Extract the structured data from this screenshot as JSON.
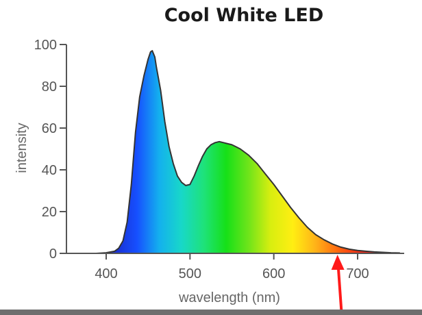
{
  "chart_data": {
    "type": "area",
    "title": "Cool White LED",
    "xlabel": "wavelength (nm)",
    "ylabel": "intensity",
    "xlim": [
      350,
      760
    ],
    "ylim": [
      0,
      100
    ],
    "xticks": [
      400,
      500,
      600,
      700
    ],
    "xtick_labels": [
      "400",
      "500",
      "600",
      "700"
    ],
    "yticks": [
      0,
      20,
      40,
      60,
      80,
      100
    ],
    "ytick_labels": [
      "0",
      "20",
      "40",
      "60",
      "80",
      "100"
    ],
    "grid": false,
    "series": [
      {
        "x": [
          388,
          400,
          410,
          415,
          420,
          425,
          430,
          435,
          440,
          445,
          450,
          453,
          455,
          458,
          460,
          465,
          470,
          475,
          480,
          485,
          490,
          495,
          500,
          505,
          510,
          515,
          520,
          525,
          530,
          535,
          540,
          545,
          550,
          555,
          560,
          570,
          580,
          590,
          600,
          610,
          620,
          630,
          640,
          650,
          660,
          670,
          680,
          690,
          700,
          710,
          720,
          730,
          740,
          750
        ],
        "y": [
          0,
          0.3,
          1,
          2.5,
          6,
          15,
          33,
          58,
          75,
          85,
          93,
          96.5,
          97,
          94,
          89,
          78,
          63,
          51,
          43,
          37,
          34,
          32.5,
          33,
          37,
          42,
          46.5,
          50,
          52,
          53,
          53.5,
          53,
          52.5,
          52,
          51,
          50,
          47,
          43,
          38,
          33,
          27.5,
          22,
          17,
          12.5,
          9,
          6.5,
          4.5,
          3,
          2,
          1.4,
          1,
          0.7,
          0.5,
          0.3,
          0.2
        ]
      }
    ],
    "annotations": [
      {
        "type": "arrow",
        "x": 676,
        "color": "#ff1a1a"
      }
    ],
    "colors": {
      "spectrum": [
        "#2a1a8f",
        "#1a2ed0",
        "#1650ff",
        "#14b0ee",
        "#18d8c8",
        "#1ee27a",
        "#16e018",
        "#6ee41a",
        "#d8ee10",
        "#ffee12",
        "#ffb418",
        "#ff6a10",
        "#f52a14",
        "#e01010",
        "#c81010"
      ]
    }
  }
}
